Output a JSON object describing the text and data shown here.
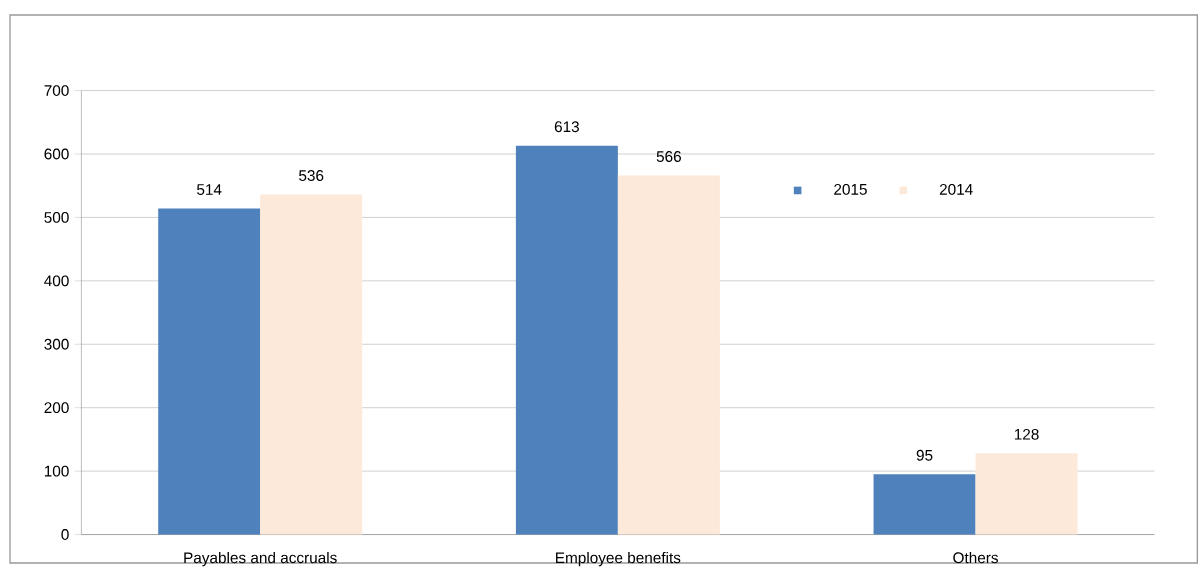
{
  "chart_data": {
    "type": "bar",
    "categories": [
      "Payables and accruals",
      "Employee benefits",
      "Others"
    ],
    "series": [
      {
        "name": "2015",
        "color": "#4f81bd",
        "values": [
          514,
          613,
          95
        ]
      },
      {
        "name": "2014",
        "color": "#fde9d9",
        "values": [
          536,
          566,
          128
        ]
      }
    ],
    "ylim": [
      0,
      700
    ],
    "yticks": [
      0,
      100,
      200,
      300,
      400,
      500,
      600,
      700
    ],
    "grid": "y",
    "legend": "top right",
    "data_labels": true
  }
}
